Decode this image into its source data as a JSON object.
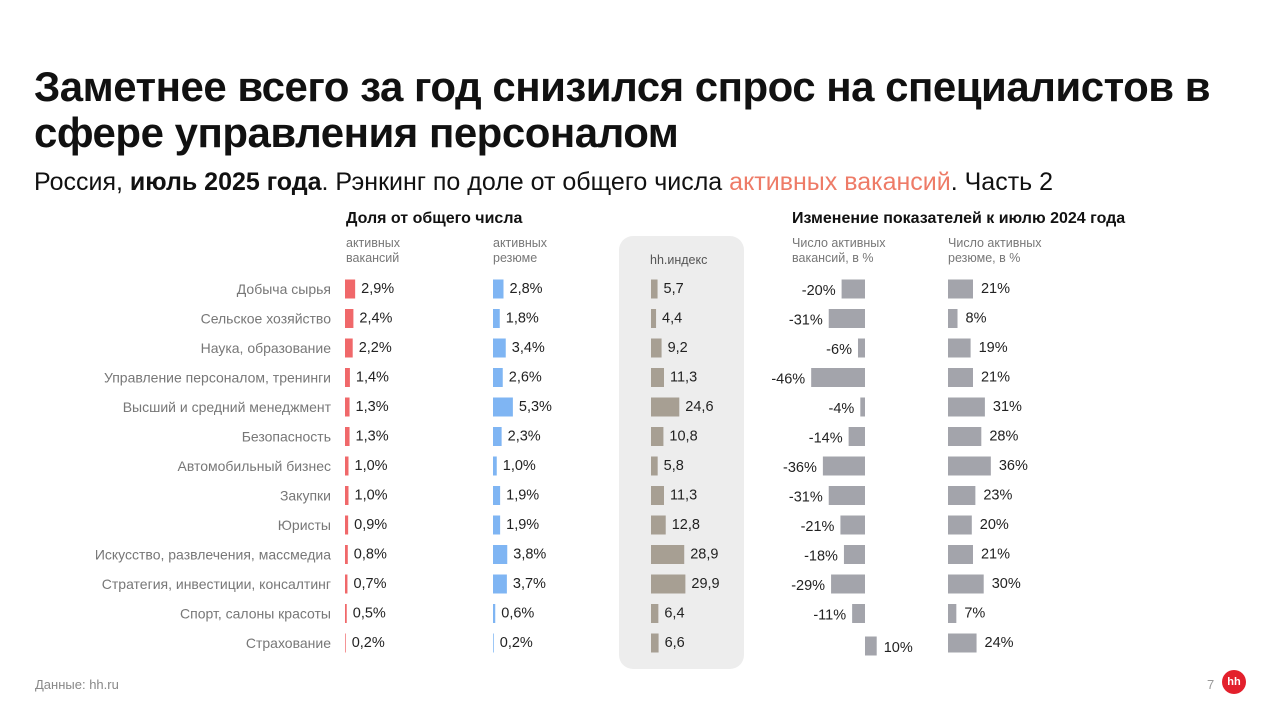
{
  "title": "Заметнее всего за год снизился спрос на специалистов в сфере управления персоналом",
  "subtitle": {
    "part1": "Россия, ",
    "bold": "июль 2025 года",
    "part2": ". Рэнкинг по доле от общего числа ",
    "accent": "активных вакансий",
    "part3": ". Часть 2"
  },
  "group_share": "Доля от общего числа",
  "group_change": "Изменение показателей к июлю 2024 года",
  "col_vac": "активных\nвакансий",
  "col_res": "активных\nрезюме",
  "col_hh": "hh.индекс",
  "col_vac_change": "Число активных\nвакансий, в %",
  "col_res_change": "Число активных\nрезюме, в %",
  "source": "Данные: hh.ru",
  "page_number": "7",
  "logo": "hh",
  "colors": {
    "vacancies": "#f0686a",
    "resumes": "#7fb5f3",
    "hh_index": "#a79f93",
    "change": "#a3a4ab",
    "accent": "#ee7b67"
  },
  "chart_data": {
    "type": "bar",
    "categories": [
      "Добыча сырья",
      "Сельское хозяйство",
      "Наука, образование",
      "Управление персоналом, тренинги",
      "Высший и средний менеджмент",
      "Безопасность",
      "Автомобильный бизнес",
      "Закупки",
      "Юристы",
      "Искусство, развлечения, массмедиа",
      "Стратегия, инвестиции, консалтинг",
      "Спорт, салоны красоты",
      "Страхование"
    ],
    "series": [
      {
        "key": "vac_share",
        "values": [
          2.9,
          2.4,
          2.2,
          1.4,
          1.3,
          1.3,
          1.0,
          1.0,
          0.9,
          0.8,
          0.7,
          0.5,
          0.2
        ],
        "labels": [
          "2,9%",
          "2,4%",
          "2,2%",
          "1,4%",
          "1,3%",
          "1,3%",
          "1,0%",
          "1,0%",
          "0,9%",
          "0,8%",
          "0,7%",
          "0,5%",
          "0,2%"
        ]
      },
      {
        "key": "res_share",
        "values": [
          2.8,
          1.8,
          3.4,
          2.6,
          5.3,
          2.3,
          1.0,
          1.9,
          1.9,
          3.8,
          3.7,
          0.6,
          0.2
        ],
        "labels": [
          "2,8%",
          "1,8%",
          "3,4%",
          "2,6%",
          "5,3%",
          "2,3%",
          "1,0%",
          "1,9%",
          "1,9%",
          "3,8%",
          "3,7%",
          "0,6%",
          "0,2%"
        ]
      },
      {
        "key": "hh_index",
        "values": [
          5.7,
          4.4,
          9.2,
          11.3,
          24.6,
          10.8,
          5.8,
          11.3,
          12.8,
          28.9,
          29.9,
          6.4,
          6.6
        ],
        "labels": [
          "5,7",
          "4,4",
          "9,2",
          "11,3",
          "24,6",
          "10,8",
          "5,8",
          "11,3",
          "12,8",
          "28,9",
          "29,9",
          "6,4",
          "6,6"
        ]
      },
      {
        "key": "vac_change",
        "values": [
          -20,
          -31,
          -6,
          -46,
          -4,
          -14,
          -36,
          -31,
          -21,
          -18,
          -29,
          -11,
          10
        ],
        "labels": [
          "-20%",
          "-31%",
          "-6%",
          "-46%",
          "-4%",
          "-14%",
          "-36%",
          "-31%",
          "-21%",
          "-18%",
          "-29%",
          "-11%",
          "10%"
        ]
      },
      {
        "key": "res_change",
        "values": [
          21,
          8,
          19,
          21,
          31,
          28,
          36,
          23,
          20,
          21,
          30,
          7,
          24
        ],
        "labels": [
          "21%",
          "8%",
          "19%",
          "21%",
          "31%",
          "28%",
          "36%",
          "23%",
          "20%",
          "21%",
          "30%",
          "7%",
          "24%"
        ]
      }
    ]
  }
}
